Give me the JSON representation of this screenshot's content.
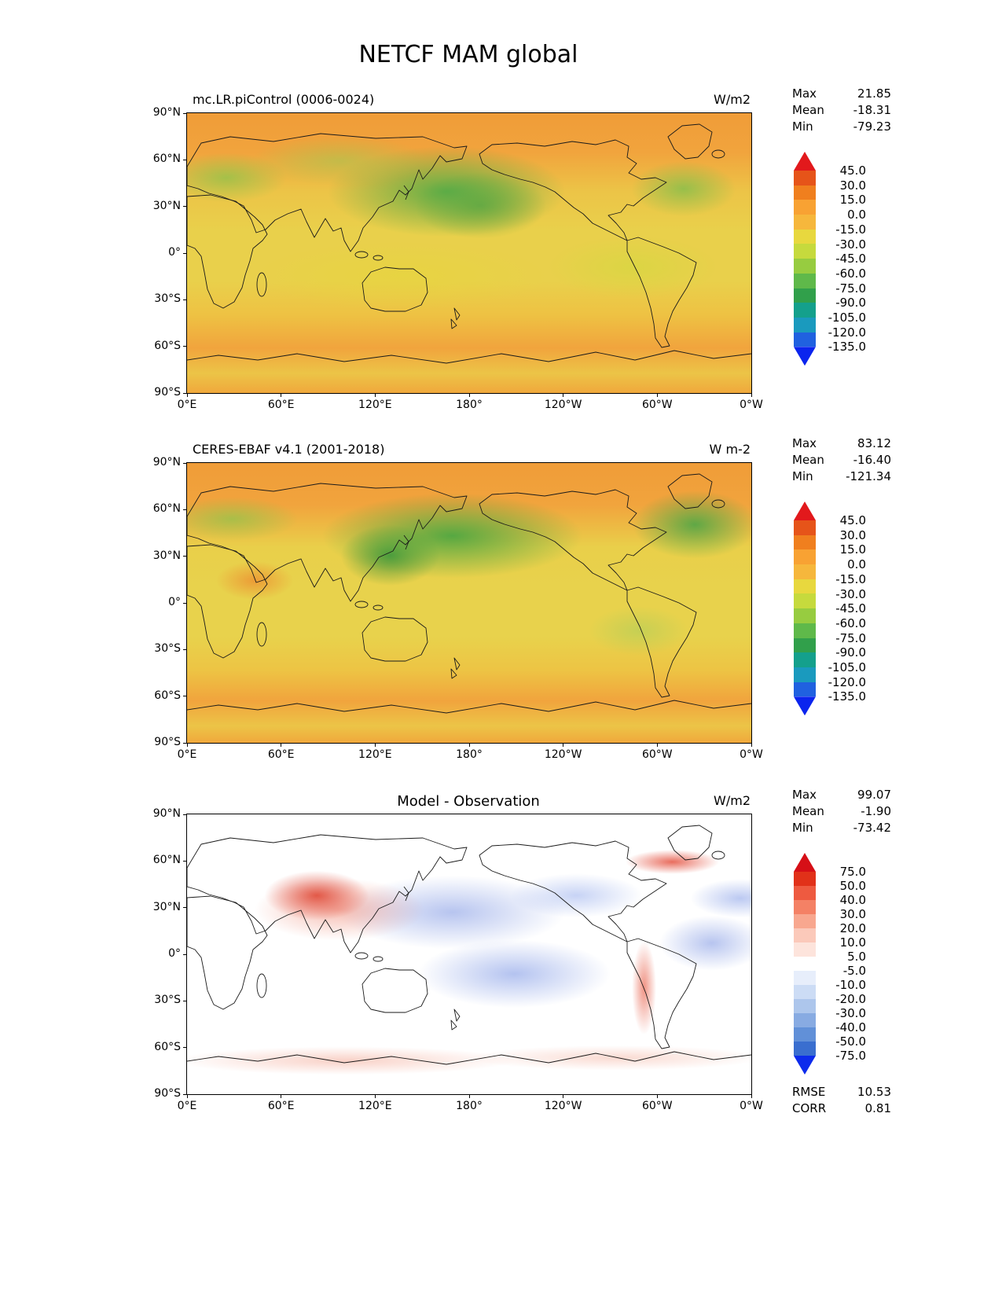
{
  "page_title": "NETCF MAM global",
  "axes": {
    "x_ticks": [
      "0°E",
      "60°E",
      "120°E",
      "180°",
      "120°W",
      "60°W",
      "0°W"
    ],
    "y_ticks": [
      "90°N",
      "60°N",
      "30°N",
      "0°",
      "30°S",
      "60°S",
      "90°S"
    ]
  },
  "panels": [
    {
      "title": "mc.LR.piControl (0006-0024)",
      "units": "W/m2",
      "stats": [
        {
          "label": "Max",
          "value": "21.85"
        },
        {
          "label": "Mean",
          "value": "-18.31"
        },
        {
          "label": "Min",
          "value": "-79.23"
        }
      ],
      "colorbar": {
        "labels": [
          "45.0",
          "30.0",
          "15.0",
          "0.0",
          "-15.0",
          "-30.0",
          "-45.0",
          "-60.0",
          "-75.0",
          "-90.0",
          "-105.0",
          "-120.0",
          "-135.0"
        ],
        "segment_colors": [
          "#e65419",
          "#f07f1e",
          "#f8a233",
          "#f6b73c",
          "#e8d83e",
          "#c6da3d",
          "#97cc40",
          "#5fb94a",
          "#31a04b",
          "#14a08c",
          "#1a9abe",
          "#2061e0"
        ],
        "arrow_top": "#e2191c",
        "arrow_bottom": "#0b24ee"
      }
    },
    {
      "title": "CERES-EBAF v4.1 (2001-2018)",
      "units": "W m-2",
      "stats": [
        {
          "label": "Max",
          "value": "83.12"
        },
        {
          "label": "Mean",
          "value": "-16.40"
        },
        {
          "label": "Min",
          "value": "-121.34"
        }
      ],
      "colorbar": {
        "labels": [
          "45.0",
          "30.0",
          "15.0",
          "0.0",
          "-15.0",
          "-30.0",
          "-45.0",
          "-60.0",
          "-75.0",
          "-90.0",
          "-105.0",
          "-120.0",
          "-135.0"
        ],
        "segment_colors": [
          "#e65419",
          "#f07f1e",
          "#f8a233",
          "#f6b73c",
          "#e8d83e",
          "#c6da3d",
          "#97cc40",
          "#5fb94a",
          "#31a04b",
          "#14a08c",
          "#1a9abe",
          "#2061e0"
        ],
        "arrow_top": "#e2191c",
        "arrow_bottom": "#0b24ee"
      }
    },
    {
      "title": "Model - Observation",
      "units": "W/m2",
      "stats": [
        {
          "label": "Max",
          "value": "99.07"
        },
        {
          "label": "Mean",
          "value": "-1.90"
        },
        {
          "label": "Min",
          "value": "-73.42"
        }
      ],
      "colorbar": {
        "labels": [
          "75.0",
          "50.0",
          "40.0",
          "30.0",
          "20.0",
          "10.0",
          "5.0",
          "-5.0",
          "-10.0",
          "-20.0",
          "-30.0",
          "-40.0",
          "-50.0",
          "-75.0"
        ],
        "segment_colors": [
          "#e13119",
          "#ee5a40",
          "#f48165",
          "#f8a78f",
          "#fbc9ba",
          "#fde4dc",
          "#ffffff",
          "#e7eefb",
          "#ccdcf5",
          "#adc6ec",
          "#88abe2",
          "#6190d8",
          "#3a6ecf"
        ],
        "arrow_top": "#d60f17",
        "arrow_bottom": "#0d2bec"
      },
      "footer": [
        {
          "label": "RMSE",
          "value": "10.53"
        },
        {
          "label": "CORR",
          "value": "0.81"
        }
      ]
    }
  ],
  "chart_data": [
    {
      "type": "heatmap",
      "title": "mc.LR.piControl (0006-0024)",
      "units": "W/m2",
      "variable": "NETCF",
      "season": "MAM",
      "region": "global",
      "projection": "equirectangular lat-lon, Pacific-centered (0°E to 0°W)",
      "x_ticks": [
        "0°E",
        "60°E",
        "120°E",
        "180°",
        "120°W",
        "60°W",
        "0°W"
      ],
      "y_ticks": [
        "90°N",
        "60°N",
        "30°N",
        "0°",
        "30°S",
        "60°S",
        "90°S"
      ],
      "colorbar_levels": [
        45,
        30,
        15,
        0,
        -15,
        -30,
        -45,
        -60,
        -75,
        -90,
        -105,
        -120,
        -135
      ],
      "colorbar_extend": "both",
      "stats": {
        "max": 21.85,
        "mean": -18.31,
        "min": -79.23
      }
    },
    {
      "type": "heatmap",
      "title": "CERES-EBAF v4.1 (2001-2018)",
      "units": "W m-2",
      "variable": "NETCF",
      "season": "MAM",
      "region": "global",
      "projection": "equirectangular lat-lon, Pacific-centered (0°E to 0°W)",
      "x_ticks": [
        "0°E",
        "60°E",
        "120°E",
        "180°",
        "120°W",
        "60°W",
        "0°W"
      ],
      "y_ticks": [
        "90°N",
        "60°N",
        "30°N",
        "0°",
        "30°S",
        "60°S",
        "90°S"
      ],
      "colorbar_levels": [
        45,
        30,
        15,
        0,
        -15,
        -30,
        -45,
        -60,
        -75,
        -90,
        -105,
        -120,
        -135
      ],
      "colorbar_extend": "both",
      "stats": {
        "max": 83.12,
        "mean": -16.4,
        "min": -121.34
      }
    },
    {
      "type": "heatmap",
      "title": "Model - Observation",
      "units": "W/m2",
      "variable": "NETCF difference",
      "season": "MAM",
      "region": "global",
      "projection": "equirectangular lat-lon, Pacific-centered (0°E to 0°W)",
      "x_ticks": [
        "0°E",
        "60°E",
        "120°E",
        "180°",
        "120°W",
        "60°W",
        "0°W"
      ],
      "y_ticks": [
        "90°N",
        "60°N",
        "30°N",
        "0°",
        "30°S",
        "60°S",
        "90°S"
      ],
      "colorbar_levels": [
        75,
        50,
        40,
        30,
        20,
        10,
        5,
        -5,
        -10,
        -20,
        -30,
        -40,
        -50,
        -75
      ],
      "colorbar_extend": "both",
      "stats": {
        "max": 99.07,
        "mean": -1.9,
        "min": -73.42
      },
      "rmse": 10.53,
      "corr": 0.81
    }
  ]
}
